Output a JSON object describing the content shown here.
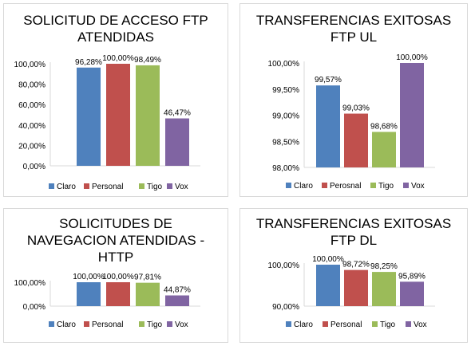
{
  "chart_data": [
    {
      "type": "bar",
      "title": "SOLICITUD DE ACCESO FTP\nATENDIDAS",
      "categories": [
        "Claro",
        "Personal",
        "Tigo",
        "Vox"
      ],
      "values": [
        96.28,
        100.0,
        98.49,
        46.47
      ],
      "data_labels": [
        "96,28%",
        "100,00%",
        "98,49%",
        "46,47%"
      ],
      "ylim": [
        0,
        100
      ],
      "yticks": [
        "0,00%",
        "20,00%",
        "40,00%",
        "60,00%",
        "80,00%",
        "100,00%"
      ],
      "legend": [
        "Claro",
        "Personal",
        "Tigo",
        "Vox"
      ],
      "legend_position": "bottom",
      "grid": false
    },
    {
      "type": "bar",
      "title": "TRANSFERENCIAS EXITOSAS\nFTP UL",
      "categories": [
        "Claro",
        "Perosnal",
        "Tigo",
        "Vox"
      ],
      "values": [
        99.57,
        99.03,
        98.68,
        100.0
      ],
      "data_labels": [
        "99,57%",
        "99,03%",
        "98,68%",
        "100,00%"
      ],
      "ylim": [
        98,
        100
      ],
      "yticks": [
        "98,00%",
        "98,50%",
        "99,00%",
        "99,50%",
        "100,00%"
      ],
      "legend": [
        "Claro",
        "Perosnal",
        "Tigo",
        "Vox"
      ],
      "legend_position": "bottom",
      "grid": false
    },
    {
      "type": "bar",
      "title": "SOLICITUDES DE\nNAVEGACION ATENDIDAS -\nHTTP",
      "categories": [
        "Claro",
        "Personal",
        "Tigo",
        "Vox"
      ],
      "values": [
        100.0,
        100.0,
        97.81,
        44.87
      ],
      "data_labels": [
        "100,00%",
        "100,00%",
        "97,81%",
        "44,87%"
      ],
      "ylim": [
        0,
        100
      ],
      "yticks": [
        "0,00%",
        "100,00%"
      ],
      "legend": [
        "Claro",
        "Personal",
        "Tigo",
        "Vox"
      ],
      "legend_position": "bottom",
      "grid": false
    },
    {
      "type": "bar",
      "title": "TRANSFERENCIAS EXITOSAS\nFTP DL",
      "categories": [
        "Claro",
        "Personal",
        "Tigo",
        "Vox"
      ],
      "values": [
        100.0,
        98.72,
        98.25,
        95.89
      ],
      "data_labels": [
        "100,00%",
        "98,72%",
        "98,25%",
        "95,89%"
      ],
      "ylim": [
        90,
        100
      ],
      "yticks": [
        "90,00%",
        "100,00%"
      ],
      "legend": [
        "Claro",
        "Personal",
        "Tigo",
        "Vox"
      ],
      "legend_position": "bottom",
      "grid": false
    }
  ],
  "colors": [
    "#4F81BD",
    "#C0504D",
    "#9BBB59",
    "#8064A2"
  ]
}
